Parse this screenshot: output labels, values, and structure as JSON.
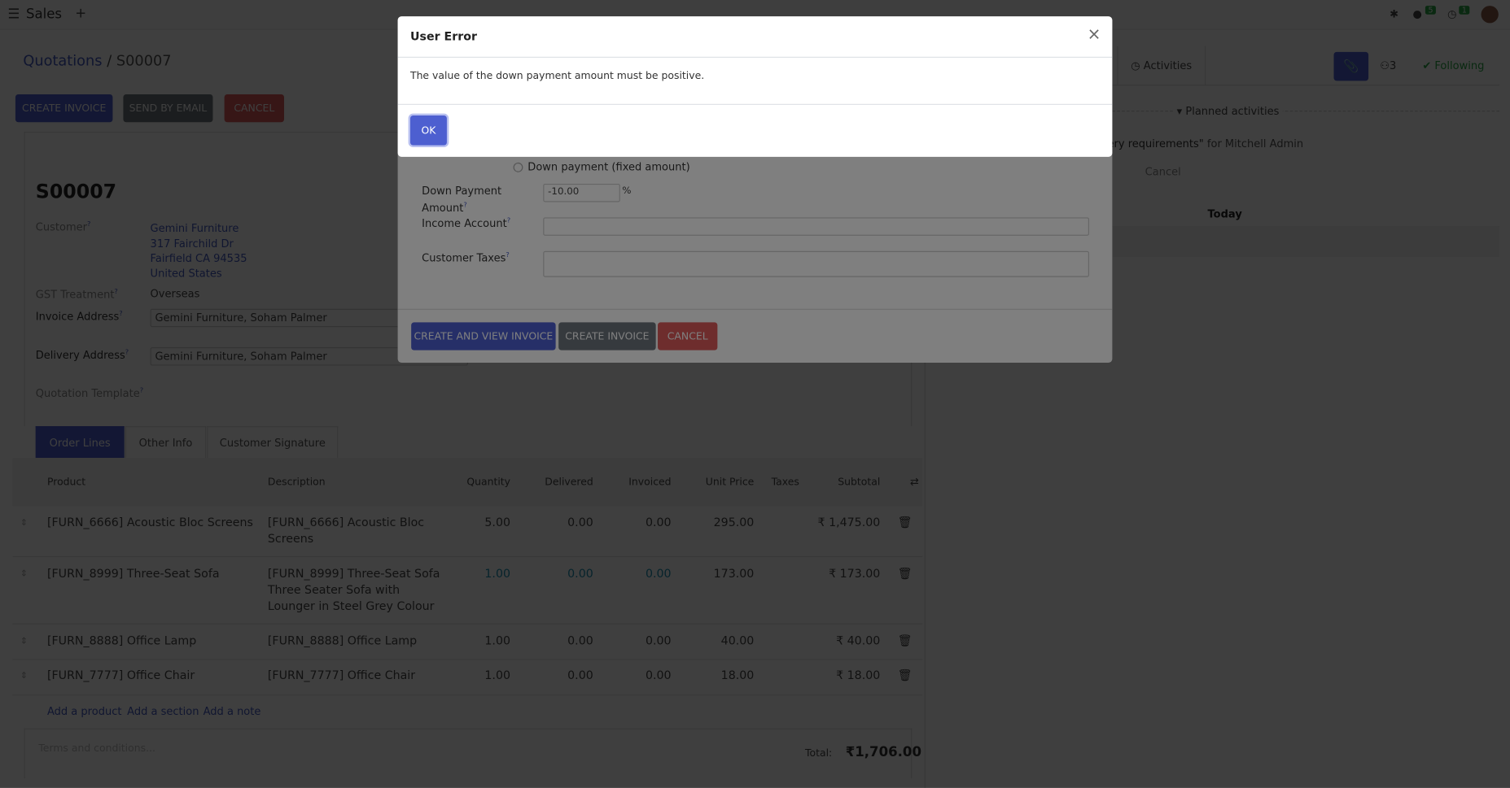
{
  "navbar": {
    "app_name": "Sales",
    "new_label": "+",
    "messages_count": "5",
    "activities_count": "1"
  },
  "breadcrumb": {
    "parent": "Quotations",
    "separator": "/",
    "current": "S00007"
  },
  "actions": {
    "create_invoice": "CREATE INVOICE",
    "send_by_email": "SEND BY EMAIL",
    "cancel": "CANCEL"
  },
  "form": {
    "title": "S00007",
    "customer_label": "Customer",
    "customer_name": "Gemini Furniture",
    "customer_street": "317 Fairchild Dr",
    "customer_city": "Fairfield CA 94535",
    "customer_country": "United States",
    "gst_label": "GST Treatment",
    "gst_value": "Overseas",
    "invoice_address_label": "Invoice Address",
    "invoice_address_value": "Gemini Furniture, Soham Palmer",
    "delivery_address_label": "Delivery Address",
    "delivery_address_value": "Gemini Furniture, Soham Palmer",
    "template_label": "Quotation Template",
    "help_mark": "?"
  },
  "tabs": [
    "Order Lines",
    "Other Info",
    "Customer Signature"
  ],
  "table": {
    "headers": [
      "Product",
      "Description",
      "Quantity",
      "Delivered",
      "Invoiced",
      "Unit Price",
      "Taxes",
      "Subtotal"
    ],
    "rows": [
      {
        "product": "[FURN_6666] Acoustic Bloc Screens",
        "description": "[FURN_6666] Acoustic Bloc Screens",
        "quantity": "5.00",
        "delivered": "0.00",
        "invoiced": "0.00",
        "unit_price": "295.00",
        "taxes": "",
        "subtotal": "₹ 1,475.00"
      },
      {
        "product": "[FURN_8999] Three-Seat Sofa",
        "description": "[FURN_8999] Three-Seat Sofa Three Seater Sofa with Lounger in Steel Grey Colour",
        "quantity": "1.00",
        "delivered": "0.00",
        "invoiced": "0.00",
        "unit_price": "173.00",
        "taxes": "",
        "subtotal": "₹ 173.00"
      },
      {
        "product": "[FURN_8888] Office Lamp",
        "description": "[FURN_8888] Office Lamp",
        "quantity": "1.00",
        "delivered": "0.00",
        "invoiced": "0.00",
        "unit_price": "40.00",
        "taxes": "",
        "subtotal": "₹ 40.00"
      },
      {
        "product": "[FURN_7777] Office Chair",
        "description": "[FURN_7777] Office Chair",
        "quantity": "1.00",
        "delivered": "0.00",
        "invoiced": "0.00",
        "unit_price": "18.00",
        "taxes": "",
        "subtotal": "₹ 18.00"
      }
    ],
    "add_product": "Add a product",
    "add_section": "Add a section",
    "add_note": "Add a note",
    "terms_placeholder": "Terms and conditions...",
    "total_label": "Total:",
    "total_value": "₹1,706.00"
  },
  "chatter": {
    "activities_label": "Activities",
    "followers_count": "3",
    "following_label": "Following",
    "planned_label": "Planned activities",
    "activity_text": "ery requirements\"",
    "activity_for": "for Mitchell Admin",
    "cancel_label": "Cancel",
    "today_label": "Today"
  },
  "wizard": {
    "fixed_option": "Down payment (fixed amount)",
    "amount_label_1": "Down Payment",
    "amount_label_2": "Amount",
    "amount_value": "-10.00",
    "percent": "%",
    "income_label": "Income Account",
    "taxes_label": "Customer Taxes",
    "create_view": "CREATE AND VIEW INVOICE",
    "create": "CREATE INVOICE",
    "cancel": "CANCEL"
  },
  "error": {
    "title": "User Error",
    "message": "The value of the down payment amount must be positive.",
    "ok": "OK",
    "close": "×"
  },
  "colors": {
    "primary": "#4d5fd0",
    "secondary": "#6c757d",
    "danger": "#dc5a5a",
    "link": "#4358c0",
    "success": "#28a745"
  }
}
